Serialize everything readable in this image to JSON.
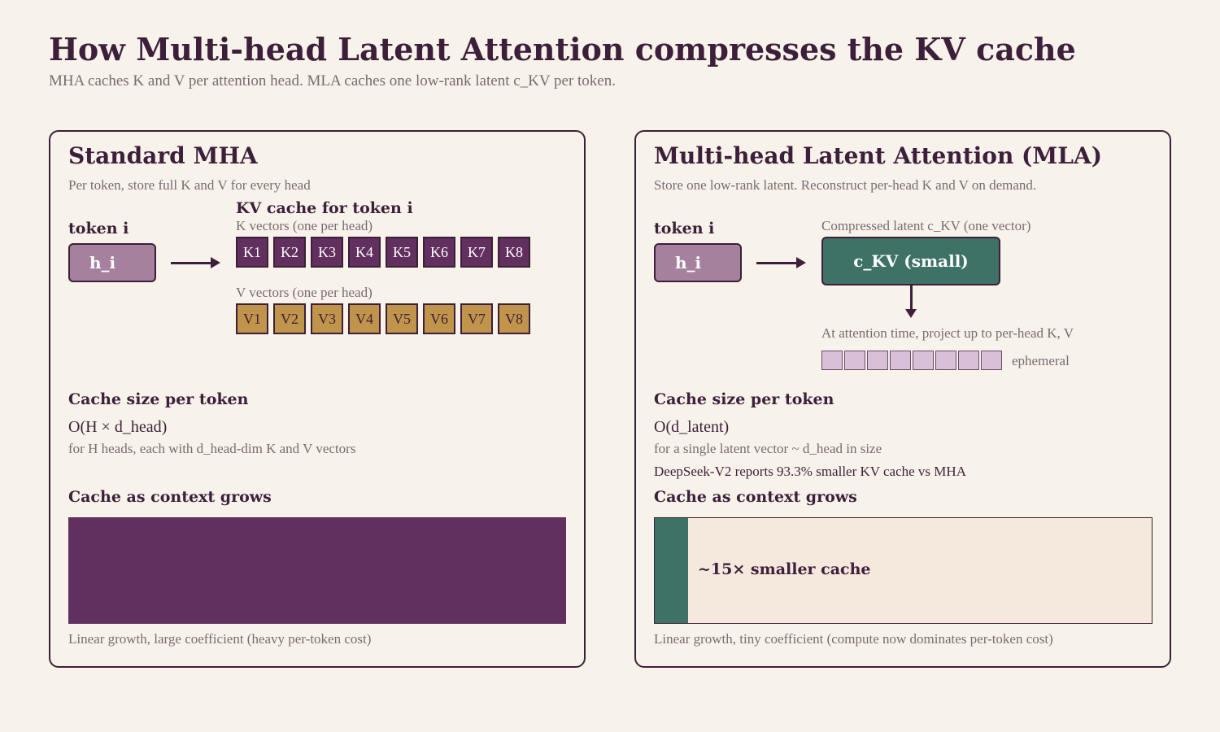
{
  "title": "How Multi-head Latent Attention compresses the KV cache",
  "subtitle": "MHA caches K and V per attention head. MLA caches one low-rank latent c_KV per token.",
  "mha": {
    "title": "Standard MHA",
    "description": "Per token, store full K and V for every head",
    "token_label": "token i",
    "token_value": "h_i",
    "kv_title": "KV cache for token i",
    "k_caption": "K vectors (one per head)",
    "v_caption": "V vectors (one per head)",
    "k_vectors": [
      "K1",
      "K2",
      "K3",
      "K4",
      "K5",
      "K6",
      "K7",
      "K8"
    ],
    "v_vectors": [
      "V1",
      "V2",
      "V3",
      "V4",
      "V5",
      "V6",
      "V7",
      "V8"
    ],
    "cache_size_heading": "Cache size per token",
    "cache_formula": "O(H × d_head)",
    "cache_note": "for H heads, each with d_head-dim K and V vectors",
    "growth_heading": "Cache as context grows",
    "growth_fill": 1.0,
    "growth_caption": "Linear growth, large coefficient (heavy per-token cost)"
  },
  "mla": {
    "title": "Multi-head Latent Attention (MLA)",
    "description": "Store one low-rank latent. Reconstruct per-head K and V on demand.",
    "token_label": "token i",
    "token_value": "h_i",
    "latent_caption": "Compressed latent  c_KV  (one vector)",
    "latent_label": "c_KV (small)",
    "projection_caption": "At attention time, project up to per-head K, V",
    "ephemeral_count": 8,
    "ephemeral_label": "ephemeral",
    "cache_size_heading": "Cache size per token",
    "cache_formula": "O(d_latent)",
    "cache_note": "for a single latent vector ~ d_head in size",
    "reported_stat": "DeepSeek-V2 reports 93.3% smaller KV cache vs MHA",
    "growth_heading": "Cache as context grows",
    "growth_fill": 0.067,
    "growth_label": "~15× smaller cache",
    "growth_caption": "Linear growth, tiny coefficient (compute now dominates per-token cost)"
  },
  "colors": {
    "background": "#f8f3ea",
    "ink": "#3d1f3b",
    "muted": "#7a6a72",
    "token": "#a5819e",
    "k_vector": "#61305e",
    "v_vector": "#c0944a",
    "latent": "#3e7266",
    "ephemeral": "#d9bfd8",
    "growth_bg": "#f4e9dc"
  }
}
